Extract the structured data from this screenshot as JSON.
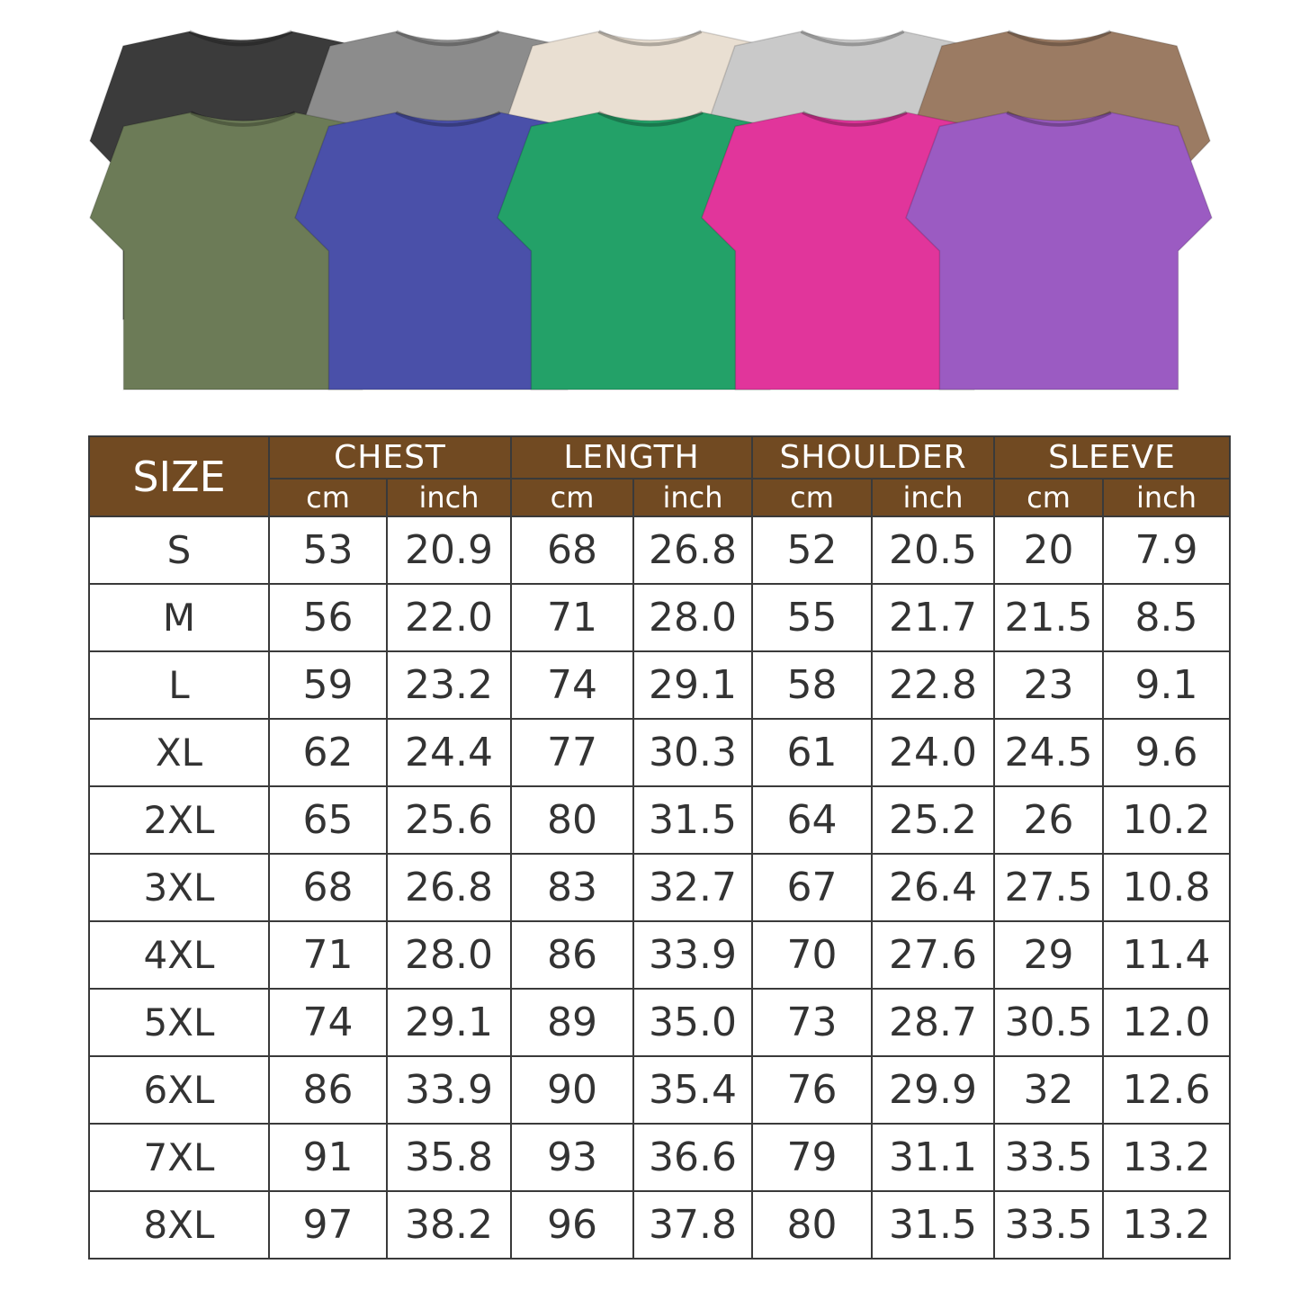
{
  "shirts": {
    "back_row_colors": [
      "#3b3b3b",
      "#8c8c8c",
      "#e9dfd2",
      "#c9c9c9",
      "#9b7b63"
    ],
    "front_row_colors": [
      "#6c7b57",
      "#4a50a9",
      "#23a168",
      "#e1359b",
      "#9b5bc2"
    ]
  },
  "size_chart": {
    "header_color": "#714a22",
    "size_label": "SIZE",
    "groups": [
      "CHEST",
      "LENGTH",
      "SHOULDER",
      "SLEEVE"
    ],
    "units": [
      "cm",
      "inch"
    ],
    "rows": [
      [
        "S",
        "53",
        "20.9",
        "68",
        "26.8",
        "52",
        "20.5",
        "20",
        "7.9"
      ],
      [
        "M",
        "56",
        "22.0",
        "71",
        "28.0",
        "55",
        "21.7",
        "21.5",
        "8.5"
      ],
      [
        "L",
        "59",
        "23.2",
        "74",
        "29.1",
        "58",
        "22.8",
        "23",
        "9.1"
      ],
      [
        "XL",
        "62",
        "24.4",
        "77",
        "30.3",
        "61",
        "24.0",
        "24.5",
        "9.6"
      ],
      [
        "2XL",
        "65",
        "25.6",
        "80",
        "31.5",
        "64",
        "25.2",
        "26",
        "10.2"
      ],
      [
        "3XL",
        "68",
        "26.8",
        "83",
        "32.7",
        "67",
        "26.4",
        "27.5",
        "10.8"
      ],
      [
        "4XL",
        "71",
        "28.0",
        "86",
        "33.9",
        "70",
        "27.6",
        "29",
        "11.4"
      ],
      [
        "5XL",
        "74",
        "29.1",
        "89",
        "35.0",
        "73",
        "28.7",
        "30.5",
        "12.0"
      ],
      [
        "6XL",
        "86",
        "33.9",
        "90",
        "35.4",
        "76",
        "29.9",
        "32",
        "12.6"
      ],
      [
        "7XL",
        "91",
        "35.8",
        "93",
        "36.6",
        "79",
        "31.1",
        "33.5",
        "13.2"
      ],
      [
        "8XL",
        "97",
        "38.2",
        "96",
        "37.8",
        "80",
        "31.5",
        "33.5",
        "13.2"
      ]
    ]
  }
}
